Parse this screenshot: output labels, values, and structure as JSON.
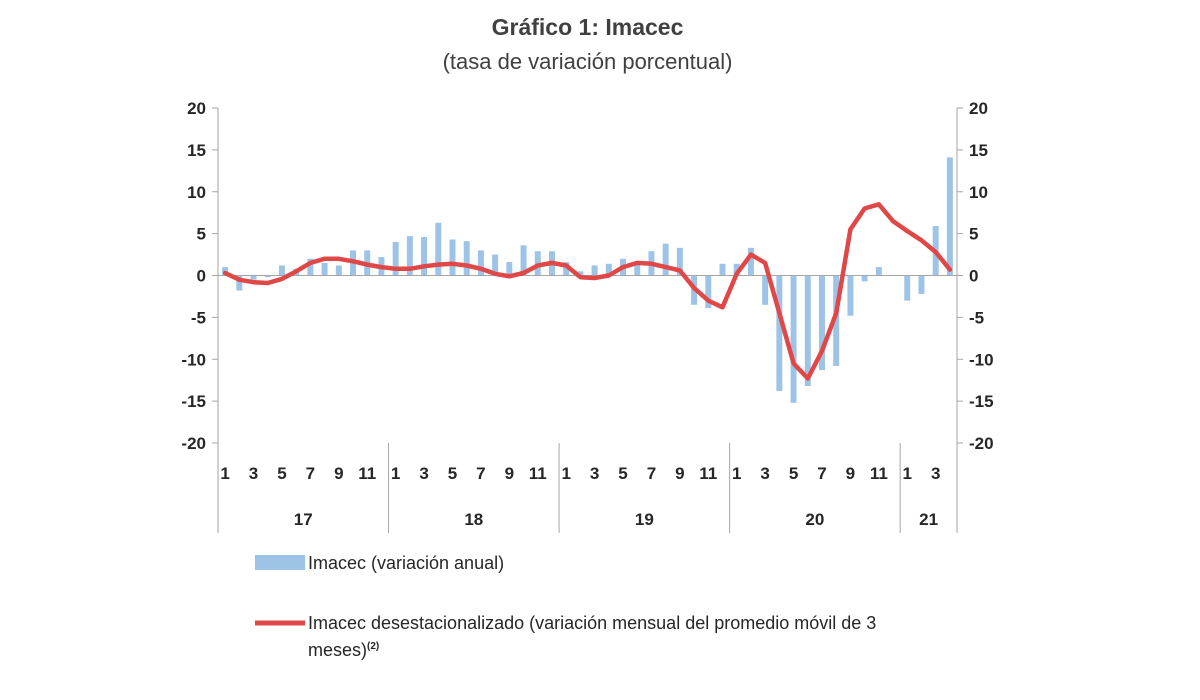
{
  "chart_data": {
    "type": "bar",
    "title": "Gráfico 1: Imacec",
    "subtitle": "(tasa de variación porcentual)",
    "ylim": [
      -20,
      20
    ],
    "y_ticks": [
      "20",
      "15",
      "10",
      "5",
      "0",
      "-5",
      "-10",
      "-15",
      "-20"
    ],
    "right_axis_ylim": [
      -20,
      20
    ],
    "grid": false,
    "month_labels": [
      "1",
      "",
      "3",
      "",
      "5",
      "",
      "7",
      "",
      "9",
      "",
      "11",
      "",
      "1",
      "",
      "3",
      "",
      "5",
      "",
      "7",
      "",
      "9",
      "",
      "11",
      "",
      "1",
      "",
      "3",
      "",
      "5",
      "",
      "7",
      "",
      "9",
      "",
      "11",
      "",
      "1",
      "",
      "3",
      "",
      "5",
      "",
      "7",
      "",
      "9",
      "",
      "11",
      "",
      "1",
      "",
      "3",
      ""
    ],
    "year_labels": [
      "17",
      "18",
      "19",
      "20",
      "21"
    ],
    "year_months": [
      12,
      12,
      12,
      12,
      4
    ],
    "series": [
      {
        "name": "Imacec (variación anual)",
        "type": "bar",
        "color": "#9dc3e6",
        "values": [
          1.0,
          -1.8,
          -0.5,
          -0.2,
          1.2,
          0.8,
          2.0,
          1.5,
          1.2,
          3.0,
          3.0,
          2.2,
          4.0,
          4.7,
          4.6,
          6.3,
          4.3,
          4.1,
          3.0,
          2.5,
          1.6,
          3.6,
          2.9,
          2.9,
          1.6,
          0.5,
          1.2,
          1.4,
          2.0,
          1.4,
          2.9,
          3.8,
          3.3,
          -3.5,
          -3.9,
          1.4,
          1.4,
          3.3,
          -3.5,
          -13.8,
          -15.2,
          -13.2,
          -11.3,
          -10.8,
          -4.8,
          -0.7,
          1.0,
          0.0,
          -3.0,
          -2.2,
          5.9,
          14.1
        ]
      },
      {
        "name": "Imacec desestacionalizado (variación mensual del promedio móvil de 3 meses)",
        "type": "line",
        "color": "#e04848",
        "values": [
          0.3,
          -0.5,
          -0.8,
          -0.9,
          -0.4,
          0.5,
          1.5,
          2.0,
          2.0,
          1.7,
          1.3,
          1.0,
          0.8,
          0.8,
          1.1,
          1.3,
          1.4,
          1.2,
          0.8,
          0.2,
          -0.1,
          0.3,
          1.2,
          1.5,
          1.2,
          -0.2,
          -0.3,
          0.0,
          1.0,
          1.5,
          1.4,
          1.0,
          0.6,
          -1.5,
          -3.0,
          -3.8,
          0.2,
          2.5,
          1.5,
          -4.5,
          -10.5,
          -12.3,
          -9.0,
          -4.5,
          5.5,
          8.0,
          8.5,
          6.5,
          5.3,
          4.2,
          2.8,
          0.7
        ]
      }
    ],
    "legend": {
      "placement": "bottom",
      "bar_label": "Imacec (variación anual)",
      "line_label_1": "Imacec desestacionalizado (variación mensual del promedio móvil de 3",
      "line_label_2": "meses)",
      "line_label_sup": "(2)"
    }
  }
}
